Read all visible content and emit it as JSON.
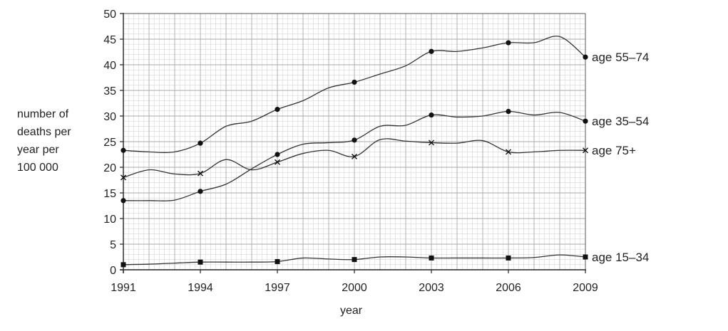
{
  "chart_data": {
    "type": "line",
    "title": "",
    "xlabel": "year",
    "ylabel_lines": [
      "number of",
      "deaths per",
      "year per",
      "100 000"
    ],
    "xlim": [
      1991,
      2009
    ],
    "ylim": [
      0,
      50
    ],
    "xticks": [
      1991,
      1994,
      1997,
      2000,
      2003,
      2006,
      2009
    ],
    "yticks": [
      0,
      5,
      10,
      15,
      20,
      25,
      30,
      35,
      40,
      45,
      50
    ],
    "grid": true,
    "series": [
      {
        "name": "age 55–74",
        "marker": "circle",
        "points": [
          [
            1991,
            23.3
          ],
          [
            1992,
            23.0
          ],
          [
            1993,
            23.0
          ],
          [
            1994,
            24.7
          ],
          [
            1995,
            28.0
          ],
          [
            1996,
            29.0
          ],
          [
            1997,
            31.3
          ],
          [
            1998,
            33.0
          ],
          [
            1999,
            35.5
          ],
          [
            2000,
            36.6
          ],
          [
            2001,
            38.2
          ],
          [
            2002,
            39.8
          ],
          [
            2003,
            42.6
          ],
          [
            2004,
            42.6
          ],
          [
            2005,
            43.3
          ],
          [
            2006,
            44.3
          ],
          [
            2007,
            44.3
          ],
          [
            2008,
            45.5
          ],
          [
            2009,
            41.5
          ]
        ],
        "marked_x": [
          1991,
          1994,
          1997,
          2000,
          2003,
          2006,
          2009
        ]
      },
      {
        "name": "age 35–54",
        "marker": "circle",
        "points": [
          [
            1991,
            13.5
          ],
          [
            1992,
            13.5
          ],
          [
            1993,
            13.6
          ],
          [
            1994,
            15.3
          ],
          [
            1995,
            16.7
          ],
          [
            1996,
            19.7
          ],
          [
            1997,
            22.5
          ],
          [
            1998,
            24.5
          ],
          [
            1999,
            24.8
          ],
          [
            2000,
            25.3
          ],
          [
            2001,
            28.0
          ],
          [
            2002,
            28.2
          ],
          [
            2003,
            30.2
          ],
          [
            2004,
            29.8
          ],
          [
            2005,
            30.0
          ],
          [
            2006,
            30.9
          ],
          [
            2007,
            30.2
          ],
          [
            2008,
            30.7
          ],
          [
            2009,
            29.0
          ]
        ],
        "marked_x": [
          1991,
          1994,
          1997,
          2000,
          2003,
          2006,
          2009
        ]
      },
      {
        "name": "age 75+",
        "marker": "cross",
        "points": [
          [
            1991,
            18.0
          ],
          [
            1992,
            19.5
          ],
          [
            1993,
            18.7
          ],
          [
            1994,
            18.8
          ],
          [
            1995,
            21.5
          ],
          [
            1996,
            19.5
          ],
          [
            1997,
            21.0
          ],
          [
            1998,
            22.7
          ],
          [
            1999,
            23.3
          ],
          [
            2000,
            22.1
          ],
          [
            2001,
            25.4
          ],
          [
            2002,
            25.1
          ],
          [
            2003,
            24.8
          ],
          [
            2004,
            24.7
          ],
          [
            2005,
            25.2
          ],
          [
            2006,
            23.0
          ],
          [
            2007,
            23.0
          ],
          [
            2008,
            23.3
          ],
          [
            2009,
            23.3
          ]
        ],
        "marked_x": [
          1991,
          1994,
          1997,
          2000,
          2003,
          2006,
          2009
        ]
      },
      {
        "name": "age 15–34",
        "marker": "square",
        "points": [
          [
            1991,
            1.0
          ],
          [
            1992,
            1.1
          ],
          [
            1993,
            1.3
          ],
          [
            1994,
            1.5
          ],
          [
            1995,
            1.5
          ],
          [
            1996,
            1.5
          ],
          [
            1997,
            1.6
          ],
          [
            1998,
            2.3
          ],
          [
            1999,
            2.1
          ],
          [
            2000,
            2.0
          ],
          [
            2001,
            2.5
          ],
          [
            2002,
            2.5
          ],
          [
            2003,
            2.3
          ],
          [
            2004,
            2.3
          ],
          [
            2005,
            2.3
          ],
          [
            2006,
            2.3
          ],
          [
            2007,
            2.4
          ],
          [
            2008,
            2.9
          ],
          [
            2009,
            2.5
          ]
        ],
        "marked_x": [
          1991,
          1994,
          1997,
          2000,
          2003,
          2006,
          2009
        ]
      }
    ]
  }
}
